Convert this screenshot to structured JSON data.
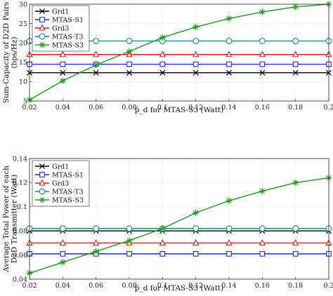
{
  "chart_data": [
    {
      "type": "line",
      "xlabel": "p̄_d for MTAS-S3 (Watt)",
      "ylabel": "Sum-Capacity of D2D Pairs (bps/Hz)",
      "x": [
        0.02,
        0.04,
        0.06,
        0.08,
        0.1,
        0.12,
        0.14,
        0.16,
        0.18,
        0.2
      ],
      "xlim": [
        0.02,
        0.2
      ],
      "ylim": [
        5,
        30
      ],
      "xticks": [
        "0.02",
        "0.04",
        "0.06",
        "0.08",
        "0.1",
        "0.12",
        "0.14",
        "0.16",
        "0.18",
        "0.2"
      ],
      "yticks": [
        "5",
        "10",
        "15",
        "20",
        "25",
        "30"
      ],
      "grid": true,
      "legend_position": "top-left",
      "series": [
        {
          "name": "Grd1",
          "marker": "x",
          "color": "#000000",
          "values": [
            12.3,
            12.3,
            12.3,
            12.3,
            12.3,
            12.3,
            12.3,
            12.3,
            12.3,
            12.3
          ]
        },
        {
          "name": "MTAS-S1",
          "marker": "square",
          "color": "#1f2bd6",
          "values": [
            14.5,
            14.5,
            14.5,
            14.5,
            14.5,
            14.5,
            14.5,
            14.5,
            14.5,
            14.5
          ]
        },
        {
          "name": "Grd3",
          "marker": "triangle",
          "color": "#d62020",
          "values": [
            17.0,
            17.0,
            17.0,
            17.0,
            17.0,
            17.0,
            17.0,
            17.0,
            17.0,
            17.0
          ]
        },
        {
          "name": "MTAS-T3",
          "marker": "circle",
          "color": "#1a8a8a",
          "values": [
            20.5,
            20.5,
            20.5,
            20.5,
            20.5,
            20.5,
            20.5,
            20.5,
            20.5,
            20.5
          ]
        },
        {
          "name": "MTAS-S3",
          "marker": "star",
          "color": "#1f9a1f",
          "values": [
            5.3,
            10.2,
            14.3,
            17.8,
            21.4,
            24.1,
            26.3,
            28.0,
            29.3,
            30.0
          ]
        }
      ]
    },
    {
      "type": "line",
      "xlabel": "p̄_d for MTAS-S3 (Watt)",
      "ylabel": "Average Total Power of each D2D Transmitter (Watt)",
      "x": [
        0.02,
        0.04,
        0.06,
        0.08,
        0.1,
        0.12,
        0.14,
        0.16,
        0.18,
        0.2
      ],
      "xlim": [
        0.02,
        0.2
      ],
      "ylim": [
        0.04,
        0.14
      ],
      "xticks": [
        "0.02",
        "0.04",
        "0.06",
        "0.08",
        "0.1",
        "0.12",
        "0.14",
        "0.16",
        "0.18",
        "0.2"
      ],
      "yticks": [
        "0.04",
        "0.06",
        "0.08",
        "0.1",
        "0.12",
        "0.14"
      ],
      "grid": true,
      "legend_position": "top-left",
      "series": [
        {
          "name": "Grd1",
          "marker": "x",
          "color": "#000000",
          "values": [
            0.08,
            0.08,
            0.08,
            0.08,
            0.08,
            0.08,
            0.08,
            0.08,
            0.08,
            0.08
          ]
        },
        {
          "name": "MTAS-S1",
          "marker": "square",
          "color": "#1f2bd6",
          "values": [
            0.061,
            0.061,
            0.061,
            0.061,
            0.061,
            0.061,
            0.061,
            0.061,
            0.061,
            0.061
          ]
        },
        {
          "name": "Grd3",
          "marker": "triangle",
          "color": "#d62020",
          "values": [
            0.07,
            0.07,
            0.07,
            0.07,
            0.07,
            0.07,
            0.07,
            0.07,
            0.07,
            0.07
          ]
        },
        {
          "name": "MTAS-T3",
          "marker": "circle",
          "color": "#1a8a8a",
          "values": [
            0.082,
            0.082,
            0.082,
            0.082,
            0.082,
            0.082,
            0.082,
            0.082,
            0.082,
            0.082
          ]
        },
        {
          "name": "MTAS-S3",
          "marker": "star",
          "color": "#1f9a1f",
          "values": [
            0.045,
            0.054,
            0.063,
            0.072,
            0.082,
            0.095,
            0.105,
            0.113,
            0.12,
            0.124
          ]
        }
      ]
    }
  ]
}
